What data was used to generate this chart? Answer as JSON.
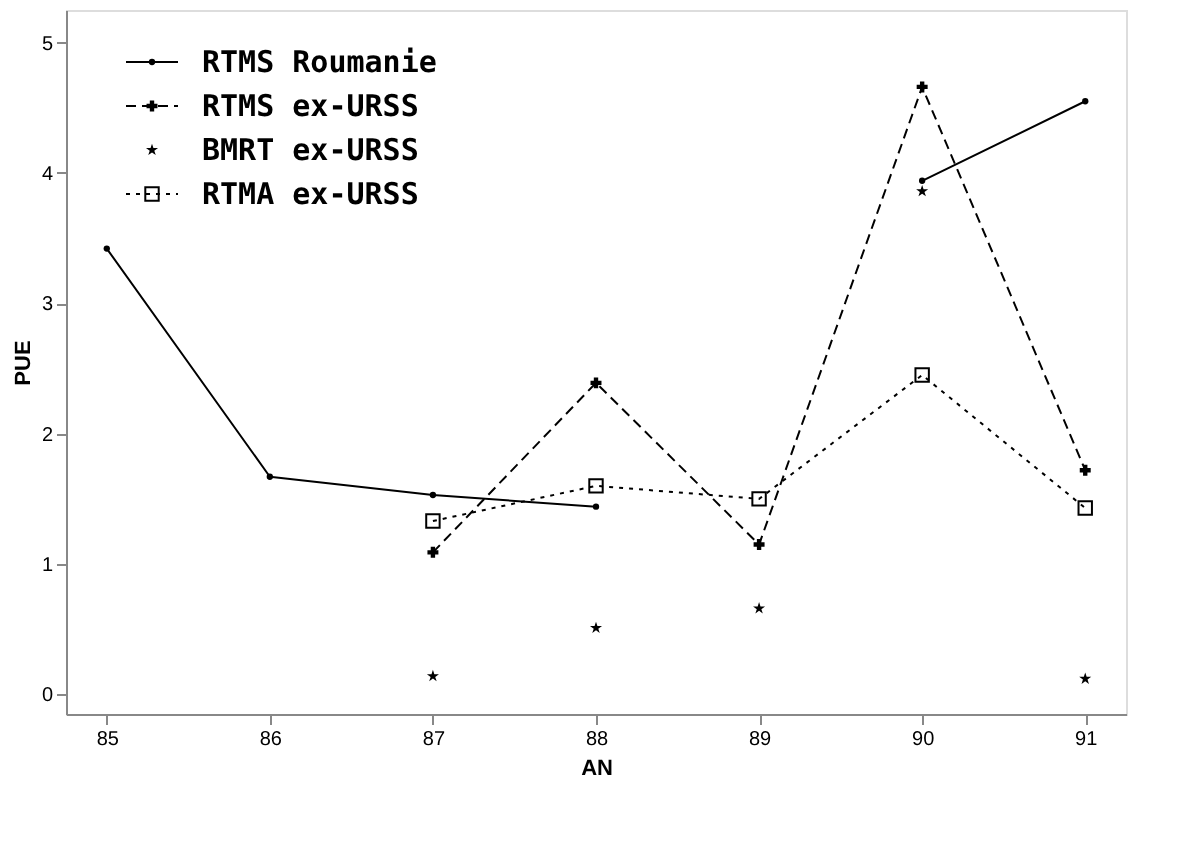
{
  "chart_data": {
    "type": "line",
    "xlabel": "AN",
    "ylabel": "PUE",
    "x": [
      85,
      86,
      87,
      88,
      89,
      90,
      91
    ],
    "xlim": [
      84.75,
      91.25
    ],
    "xticks": [
      85,
      86,
      87,
      88,
      89,
      90,
      91
    ],
    "ylim": [
      -0.15,
      5.25
    ],
    "yticks": [
      0,
      1,
      2,
      3,
      4,
      5
    ],
    "grid": false,
    "legend": "top left",
    "series": [
      {
        "name": "RTMS Roumanie",
        "color": "#000000",
        "marker": "circle",
        "line_style": "solid",
        "values": [
          3.42,
          1.67,
          1.53,
          1.44,
          null,
          3.94,
          4.55
        ]
      },
      {
        "name": "RTMS ex-URSS",
        "color": "#000000",
        "marker": "cross",
        "line_style": "dashed",
        "values": [
          null,
          null,
          1.09,
          2.39,
          1.15,
          4.66,
          1.72
        ]
      },
      {
        "name": "BMRT ex-URSS",
        "color": "#000000",
        "type": "scatter",
        "marker": "star",
        "values": [
          null,
          null,
          0.14,
          0.51,
          0.66,
          3.86,
          0.12
        ]
      },
      {
        "name": "RTMA ex-URSS",
        "color": "#000000",
        "marker": "square",
        "line_style": "dotted",
        "values": [
          null,
          null,
          1.33,
          1.6,
          1.5,
          2.45,
          1.43
        ]
      }
    ]
  }
}
